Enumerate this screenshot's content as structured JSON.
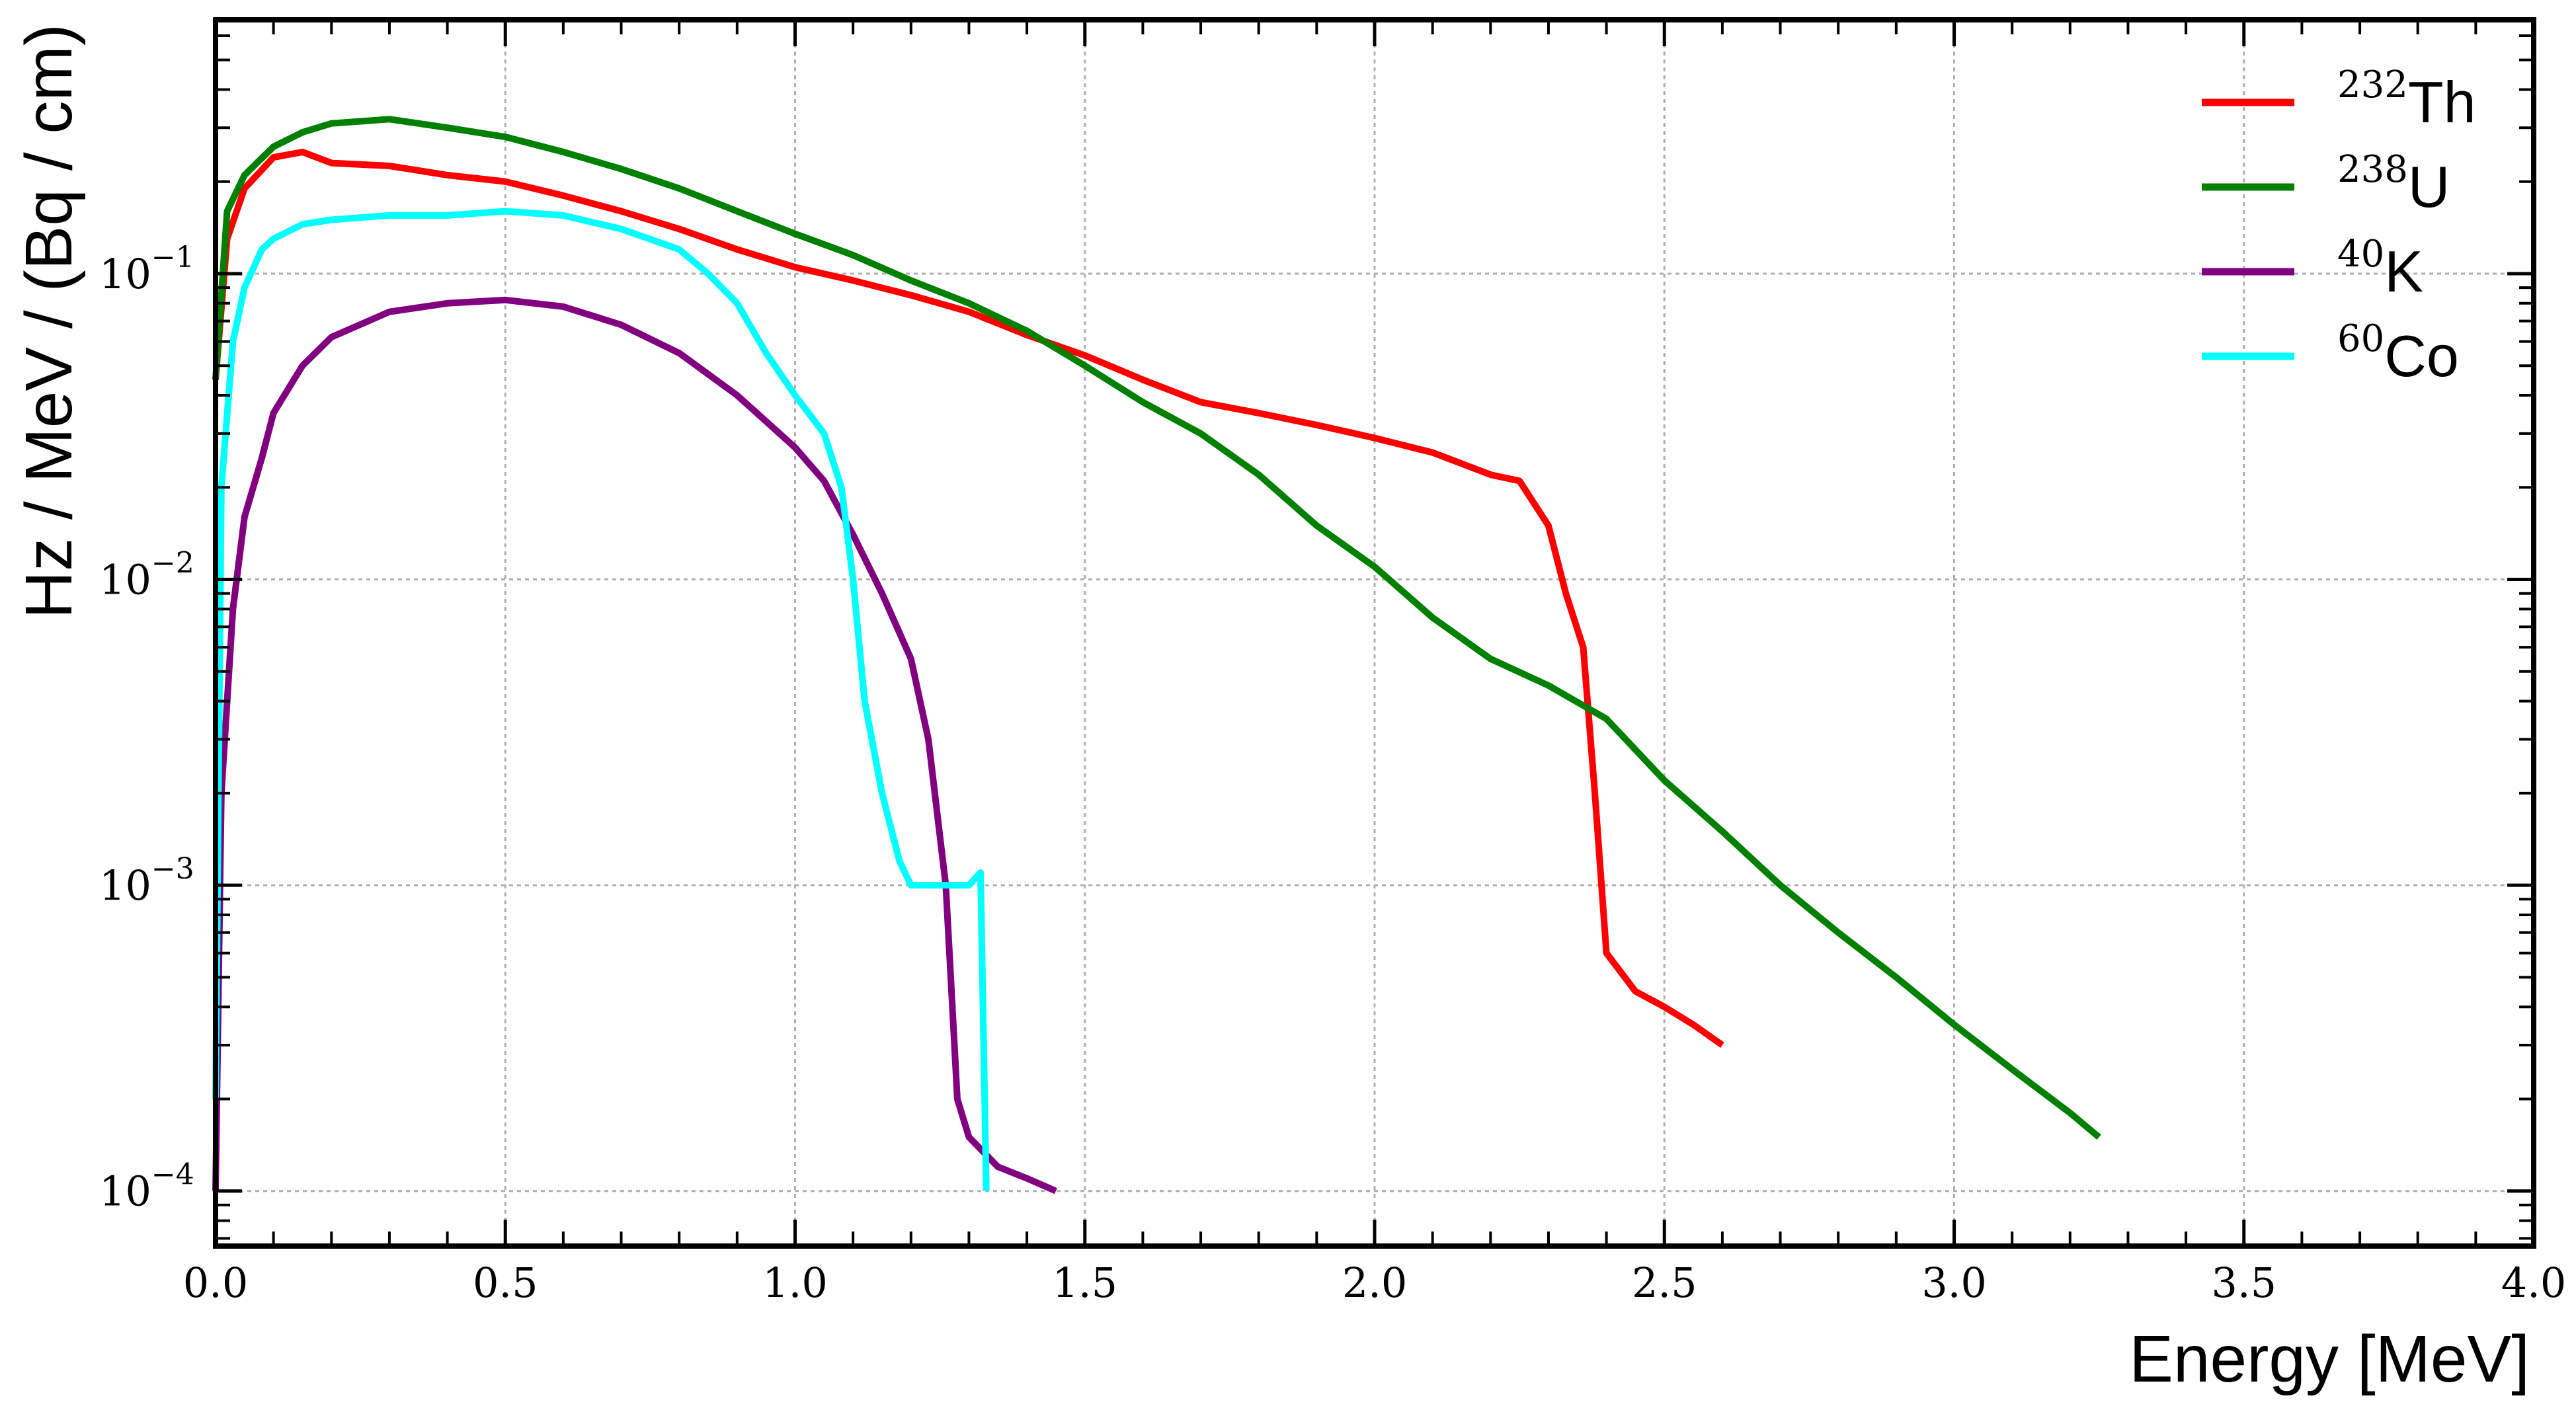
{
  "chart_data": {
    "type": "line",
    "title": "",
    "xlabel": "Energy [MeV]",
    "ylabel": "Hz / MeV / (Bq / cm)",
    "xlim": [
      0.0,
      4.0
    ],
    "ylim_log10": [
      -4.18,
      -0.17
    ],
    "yscale": "log",
    "grid": true,
    "legend_position": "top-right",
    "x_ticks": [
      0.0,
      0.5,
      1.0,
      1.5,
      2.0,
      2.5,
      3.0,
      3.5,
      4.0
    ],
    "x_tick_labels": [
      "0.0",
      "0.5",
      "1.0",
      "1.5",
      "2.0",
      "2.5",
      "3.0",
      "3.5",
      "4.0"
    ],
    "y_tick_exponents": [
      -4,
      -3,
      -2,
      -1
    ],
    "y_tick_labels": [
      "10",
      "10",
      "10",
      "10"
    ],
    "y_tick_sup": [
      "−4",
      "−3",
      "−2",
      "−1"
    ],
    "series": [
      {
        "name": "Th",
        "mass": "232",
        "color": "#ff0000",
        "x": [
          0.0,
          0.02,
          0.05,
          0.1,
          0.15,
          0.2,
          0.3,
          0.4,
          0.5,
          0.6,
          0.7,
          0.8,
          0.9,
          1.0,
          1.1,
          1.2,
          1.3,
          1.4,
          1.5,
          1.6,
          1.7,
          1.8,
          1.9,
          2.0,
          2.1,
          2.2,
          2.25,
          2.3,
          2.33,
          2.36,
          2.38,
          2.4,
          2.45,
          2.5,
          2.55,
          2.6
        ],
        "y": [
          0.045,
          0.13,
          0.19,
          0.24,
          0.25,
          0.23,
          0.225,
          0.21,
          0.2,
          0.18,
          0.16,
          0.14,
          0.12,
          0.105,
          0.095,
          0.085,
          0.075,
          0.063,
          0.054,
          0.045,
          0.038,
          0.035,
          0.032,
          0.029,
          0.026,
          0.022,
          0.021,
          0.015,
          0.009,
          0.006,
          0.002,
          0.0006,
          0.00045,
          0.0004,
          0.00035,
          0.0003
        ]
      },
      {
        "name": "U",
        "mass": "238",
        "color": "#008000",
        "x": [
          0.0,
          0.02,
          0.05,
          0.1,
          0.15,
          0.2,
          0.3,
          0.4,
          0.5,
          0.6,
          0.7,
          0.8,
          0.9,
          1.0,
          1.1,
          1.2,
          1.3,
          1.4,
          1.5,
          1.6,
          1.7,
          1.8,
          1.9,
          2.0,
          2.1,
          2.2,
          2.3,
          2.4,
          2.5,
          2.6,
          2.7,
          2.8,
          2.9,
          3.0,
          3.1,
          3.2,
          3.25
        ],
        "y": [
          0.045,
          0.16,
          0.21,
          0.26,
          0.29,
          0.31,
          0.32,
          0.3,
          0.28,
          0.25,
          0.22,
          0.19,
          0.16,
          0.135,
          0.115,
          0.095,
          0.08,
          0.065,
          0.05,
          0.038,
          0.03,
          0.022,
          0.015,
          0.011,
          0.0075,
          0.0055,
          0.0045,
          0.0035,
          0.0022,
          0.0015,
          0.001,
          0.0007,
          0.0005,
          0.00035,
          0.00025,
          0.00018,
          0.00015
        ]
      },
      {
        "name": "K",
        "mass": "40",
        "color": "#800080",
        "x": [
          0.0,
          0.01,
          0.03,
          0.05,
          0.08,
          0.1,
          0.15,
          0.2,
          0.3,
          0.4,
          0.5,
          0.6,
          0.7,
          0.8,
          0.9,
          1.0,
          1.05,
          1.1,
          1.15,
          1.2,
          1.23,
          1.26,
          1.28,
          1.3,
          1.35,
          1.4,
          1.45
        ],
        "y": [
          0.0001,
          0.002,
          0.008,
          0.016,
          0.025,
          0.035,
          0.05,
          0.062,
          0.075,
          0.08,
          0.082,
          0.078,
          0.068,
          0.055,
          0.04,
          0.027,
          0.021,
          0.014,
          0.009,
          0.0055,
          0.003,
          0.001,
          0.0002,
          0.00015,
          0.00012,
          0.00011,
          0.0001
        ]
      },
      {
        "name": "Co",
        "mass": "60",
        "color": "#00ffff",
        "x": [
          0.0,
          0.01,
          0.03,
          0.05,
          0.08,
          0.1,
          0.15,
          0.2,
          0.3,
          0.4,
          0.5,
          0.6,
          0.7,
          0.8,
          0.85,
          0.9,
          0.95,
          1.0,
          1.05,
          1.08,
          1.1,
          1.12,
          1.15,
          1.18,
          1.2,
          1.25,
          1.3,
          1.32,
          1.33
        ],
        "y": [
          0.0002,
          0.02,
          0.06,
          0.09,
          0.12,
          0.13,
          0.145,
          0.15,
          0.155,
          0.155,
          0.16,
          0.155,
          0.14,
          0.12,
          0.1,
          0.08,
          0.055,
          0.04,
          0.03,
          0.02,
          0.01,
          0.004,
          0.002,
          0.0012,
          0.001,
          0.001,
          0.001,
          0.0011,
          0.0001
        ]
      }
    ]
  }
}
